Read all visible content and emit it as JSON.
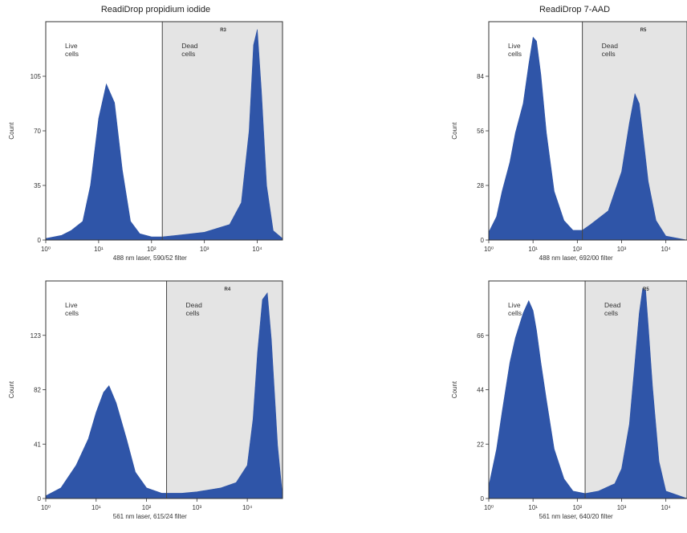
{
  "colors": {
    "fill": "#2f55a8",
    "dead_region": "#e4e4e4",
    "frame": "#333333"
  },
  "chart_data": [
    {
      "type": "area",
      "title": "ReadiDrop propidium iodide",
      "xlabel": "488 nm laser, 590/52 filter",
      "ylabel": "Count",
      "xscale": "log",
      "xlim": [
        1,
        30000
      ],
      "ylim": [
        0,
        140
      ],
      "xtick_values": [
        1,
        10,
        100,
        1000,
        10000
      ],
      "xtick_labels": [
        "10⁰",
        "10¹",
        "10²",
        "10³",
        "10⁴"
      ],
      "yticks": [
        0,
        35,
        70,
        105
      ],
      "gate_x": 160,
      "regions": [
        {
          "name": "live",
          "line1": "Live",
          "line2": "cells"
        },
        {
          "name": "dead",
          "line1": "Dead",
          "line2": "cells"
        }
      ],
      "gate_code": "R3",
      "x": [
        1,
        2,
        3,
        5,
        7,
        10,
        14,
        20,
        28,
        40,
        60,
        100,
        160,
        300,
        1000,
        3000,
        5000,
        7000,
        8500,
        10000,
        12000,
        15000,
        20000,
        30000
      ],
      "y": [
        1,
        3,
        6,
        12,
        35,
        78,
        100,
        88,
        45,
        12,
        4,
        2,
        2,
        3,
        5,
        10,
        24,
        70,
        125,
        135,
        95,
        35,
        6,
        1
      ]
    },
    {
      "type": "area",
      "title": "ReadiDrop 7-AAD",
      "xlabel": "488 nm laser, 692/00 filter",
      "ylabel": "Count",
      "xscale": "log",
      "xlim": [
        1,
        30000
      ],
      "ylim": [
        0,
        112
      ],
      "xtick_values": [
        1,
        10,
        100,
        1000,
        10000
      ],
      "xtick_labels": [
        "10⁰",
        "10¹",
        "10²",
        "10³",
        "10⁴"
      ],
      "yticks": [
        0,
        28,
        56,
        84
      ],
      "gate_x": 130,
      "regions": [
        {
          "name": "live",
          "line1": "Live",
          "line2": "cells"
        },
        {
          "name": "dead",
          "line1": "Dead",
          "line2": "cells"
        }
      ],
      "gate_code": "R5",
      "x": [
        1,
        1.5,
        2,
        3,
        4,
        6,
        8,
        10,
        12,
        15,
        20,
        30,
        50,
        80,
        130,
        200,
        500,
        1000,
        1500,
        2000,
        2500,
        3000,
        4000,
        6000,
        10000,
        30000
      ],
      "y": [
        4,
        12,
        25,
        40,
        55,
        70,
        90,
        104,
        102,
        85,
        55,
        25,
        10,
        5,
        5,
        8,
        15,
        35,
        60,
        75,
        70,
        55,
        30,
        10,
        2,
        0
      ]
    },
    {
      "type": "area",
      "title": "",
      "xlabel": "561 nm laser, 615/24 filter",
      "ylabel": "Count",
      "xscale": "log",
      "xlim": [
        1,
        50000
      ],
      "ylim": [
        0,
        164
      ],
      "xtick_values": [
        1,
        10,
        100,
        1000,
        10000
      ],
      "xtick_labels": [
        "10⁰",
        "10¹",
        "10²",
        "10³",
        "10⁴"
      ],
      "yticks": [
        0,
        41,
        82,
        123
      ],
      "gate_x": 250,
      "regions": [
        {
          "name": "live",
          "line1": "Live",
          "line2": "cells"
        },
        {
          "name": "dead",
          "line1": "Dead",
          "line2": "cells"
        }
      ],
      "gate_code": "R4",
      "x": [
        1,
        2,
        4,
        7,
        10,
        14,
        18,
        25,
        40,
        60,
        100,
        200,
        500,
        1000,
        3000,
        6000,
        10000,
        13000,
        16000,
        20000,
        25000,
        30000,
        40000,
        50000
      ],
      "y": [
        2,
        8,
        25,
        45,
        65,
        80,
        85,
        72,
        45,
        20,
        8,
        4,
        4,
        5,
        8,
        12,
        25,
        60,
        110,
        150,
        155,
        120,
        40,
        2
      ]
    },
    {
      "type": "area",
      "title": "",
      "xlabel": "561 nm laser, 640/20 filter",
      "ylabel": "Count",
      "xscale": "log",
      "xlim": [
        1,
        30000
      ],
      "ylim": [
        0,
        88
      ],
      "xtick_values": [
        1,
        10,
        100,
        1000,
        10000
      ],
      "xtick_labels": [
        "10⁰",
        "10¹",
        "10²",
        "10³",
        "10⁴"
      ],
      "yticks": [
        0,
        22,
        44,
        66
      ],
      "gate_x": 150,
      "regions": [
        {
          "name": "live",
          "line1": "Live",
          "line2": "cells"
        },
        {
          "name": "dead",
          "line1": "Dead",
          "line2": "cells"
        }
      ],
      "gate_code": "R5",
      "x": [
        1,
        1.5,
        2,
        3,
        4,
        6,
        8,
        10,
        12,
        15,
        20,
        30,
        50,
        80,
        150,
        300,
        700,
        1000,
        1500,
        2000,
        2500,
        3000,
        3500,
        4000,
        5000,
        7000,
        10000,
        30000
      ],
      "y": [
        5,
        20,
        35,
        55,
        65,
        75,
        80,
        76,
        68,
        55,
        40,
        20,
        8,
        3,
        2,
        3,
        6,
        12,
        30,
        55,
        75,
        85,
        84,
        70,
        45,
        15,
        3,
        0
      ]
    }
  ]
}
